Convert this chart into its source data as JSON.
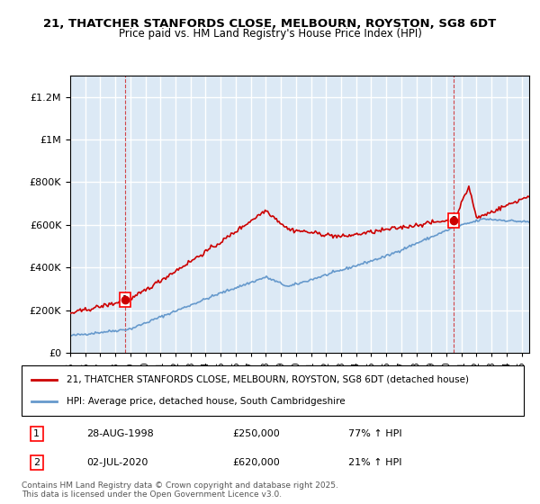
{
  "title_line1": "21, THATCHER STANFORDS CLOSE, MELBOURN, ROYSTON, SG8 6DT",
  "title_line2": "Price paid vs. HM Land Registry's House Price Index (HPI)",
  "ylabel_ticks": [
    "£0",
    "£200K",
    "£400K",
    "£600K",
    "£800K",
    "£1M",
    "£1.2M"
  ],
  "ytick_values": [
    0,
    200000,
    400000,
    600000,
    800000,
    1000000,
    1200000
  ],
  "ylim": [
    0,
    1300000
  ],
  "xlim_start": 1995.0,
  "xlim_end": 2025.5,
  "background_color": "#dce9f5",
  "plot_bg_color": "#dce9f5",
  "grid_color": "#ffffff",
  "red_line_color": "#cc0000",
  "blue_line_color": "#6699cc",
  "sale1_x": 1998.66,
  "sale1_y": 250000,
  "sale1_label": "1",
  "sale2_x": 2020.5,
  "sale2_y": 620000,
  "sale2_label": "2",
  "legend_line1": "21, THATCHER STANFORDS CLOSE, MELBOURN, ROYSTON, SG8 6DT (detached house)",
  "legend_line2": "HPI: Average price, detached house, South Cambridgeshire",
  "table_row1": [
    "1",
    "28-AUG-1998",
    "£250,000",
    "77% ↑ HPI"
  ],
  "table_row2": [
    "2",
    "02-JUL-2020",
    "£620,000",
    "21% ↑ HPI"
  ],
  "footer": "Contains HM Land Registry data © Crown copyright and database right 2025.\nThis data is licensed under the Open Government Licence v3.0."
}
